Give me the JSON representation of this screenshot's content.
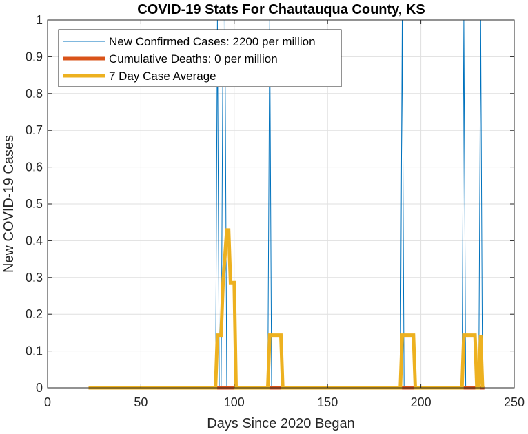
{
  "chart_data": {
    "type": "line",
    "title": "COVID-19 Stats For Chautauqua County, KS",
    "xlabel": "Days Since 2020 Began",
    "ylabel": "New COVID-19 Cases",
    "xlim": [
      0,
      250
    ],
    "ylim": [
      0,
      1
    ],
    "xticks": [
      0,
      50,
      100,
      150,
      200,
      250
    ],
    "yticks": [
      0,
      0.1,
      0.2,
      0.3,
      0.4,
      0.5,
      0.6,
      0.7,
      0.8,
      0.9,
      1
    ],
    "xtick_labels": [
      "0",
      "50",
      "100",
      "150",
      "200",
      "250"
    ],
    "ytick_labels": [
      "0",
      "0.1",
      "0.2",
      "0.3",
      "0.4",
      "0.5",
      "0.6",
      "0.7",
      "0.8",
      "0.9",
      "1"
    ],
    "grid": true,
    "legend_position": "top-left",
    "series": [
      {
        "name": "New Confirmed Cases: 2200 per million",
        "color": "#0072BD",
        "line_width": "thin",
        "x": [
          22,
          90,
          91,
          92,
          93,
          94,
          95,
          96,
          97,
          118,
          119,
          120,
          189,
          190,
          191,
          222,
          223,
          224,
          230,
          231,
          232,
          233,
          234
        ],
        "y": [
          0,
          0,
          1,
          0,
          0,
          1,
          1,
          0,
          0,
          0,
          1,
          0,
          0,
          1,
          0,
          0,
          1,
          0,
          0,
          0,
          1,
          0,
          0
        ]
      },
      {
        "name": "Cumulative Deaths: 0 per million",
        "color": "#D95319",
        "line_width": "thick",
        "x": [
          22,
          234
        ],
        "y": [
          0,
          0
        ]
      },
      {
        "name": "7 Day Case Average",
        "color": "#EDB120",
        "line_width": "thick",
        "x": [
          22,
          90,
          91,
          93,
          94,
          96,
          97,
          98,
          100,
          101,
          118,
          119,
          120,
          125,
          126,
          189,
          190,
          191,
          196,
          197,
          222,
          223,
          224,
          229,
          230,
          231,
          232,
          233
        ],
        "y": [
          0,
          0,
          0.143,
          0.143,
          0.286,
          0.429,
          0.429,
          0.286,
          0.286,
          0,
          0,
          0.143,
          0.143,
          0.143,
          0,
          0,
          0.143,
          0.143,
          0.143,
          0,
          0,
          0.143,
          0.143,
          0.143,
          0,
          0,
          0.143,
          0
        ]
      }
    ]
  }
}
